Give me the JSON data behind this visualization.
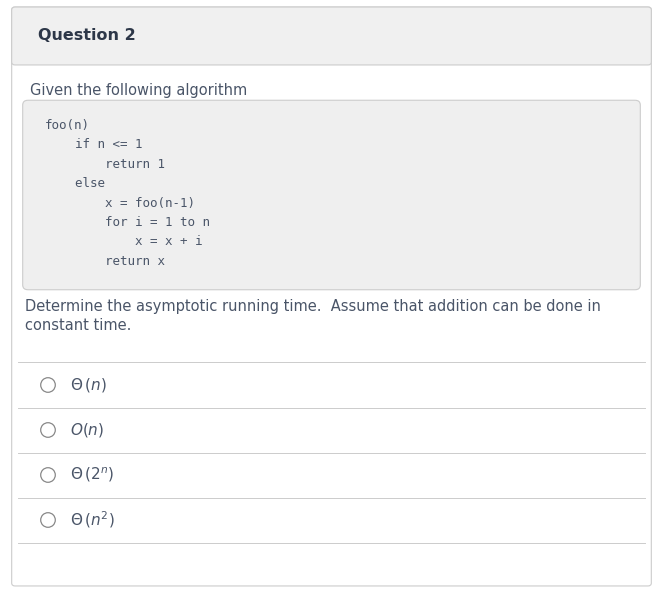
{
  "title": "Question 2",
  "intro_text": "Given the following algorithm",
  "code_lines": [
    "foo(n)",
    "    if n <= 1",
    "        return 1",
    "    else",
    "        x = foo(n-1)",
    "        for i = 1 to n",
    "            x = x + i",
    "        return x"
  ],
  "description_line1": "Determine the asymptotic running time.  Assume that addition can be done in",
  "description_line2": "constant time.",
  "bg_color": "#ffffff",
  "header_bg": "#f0f0f0",
  "code_bg": "#efefef",
  "outer_border": "#cccccc",
  "header_border": "#cccccc",
  "code_border": "#cccccc",
  "option_line_color": "#cccccc",
  "text_color": "#4a5568",
  "title_color": "#2d3748",
  "code_color": "#4a5568",
  "circle_color": "#888888",
  "title_fontsize": 11.5,
  "body_fontsize": 10.5,
  "code_fontsize": 9.0,
  "option_fontsize": 11.0,
  "option_labels": [
    "$\\Theta\\,(n)$",
    "$O(n)$",
    "$\\Theta\\,(2^n)$",
    "$\\Theta\\,(n^2)$"
  ],
  "fig_width": 6.63,
  "fig_height": 5.93
}
